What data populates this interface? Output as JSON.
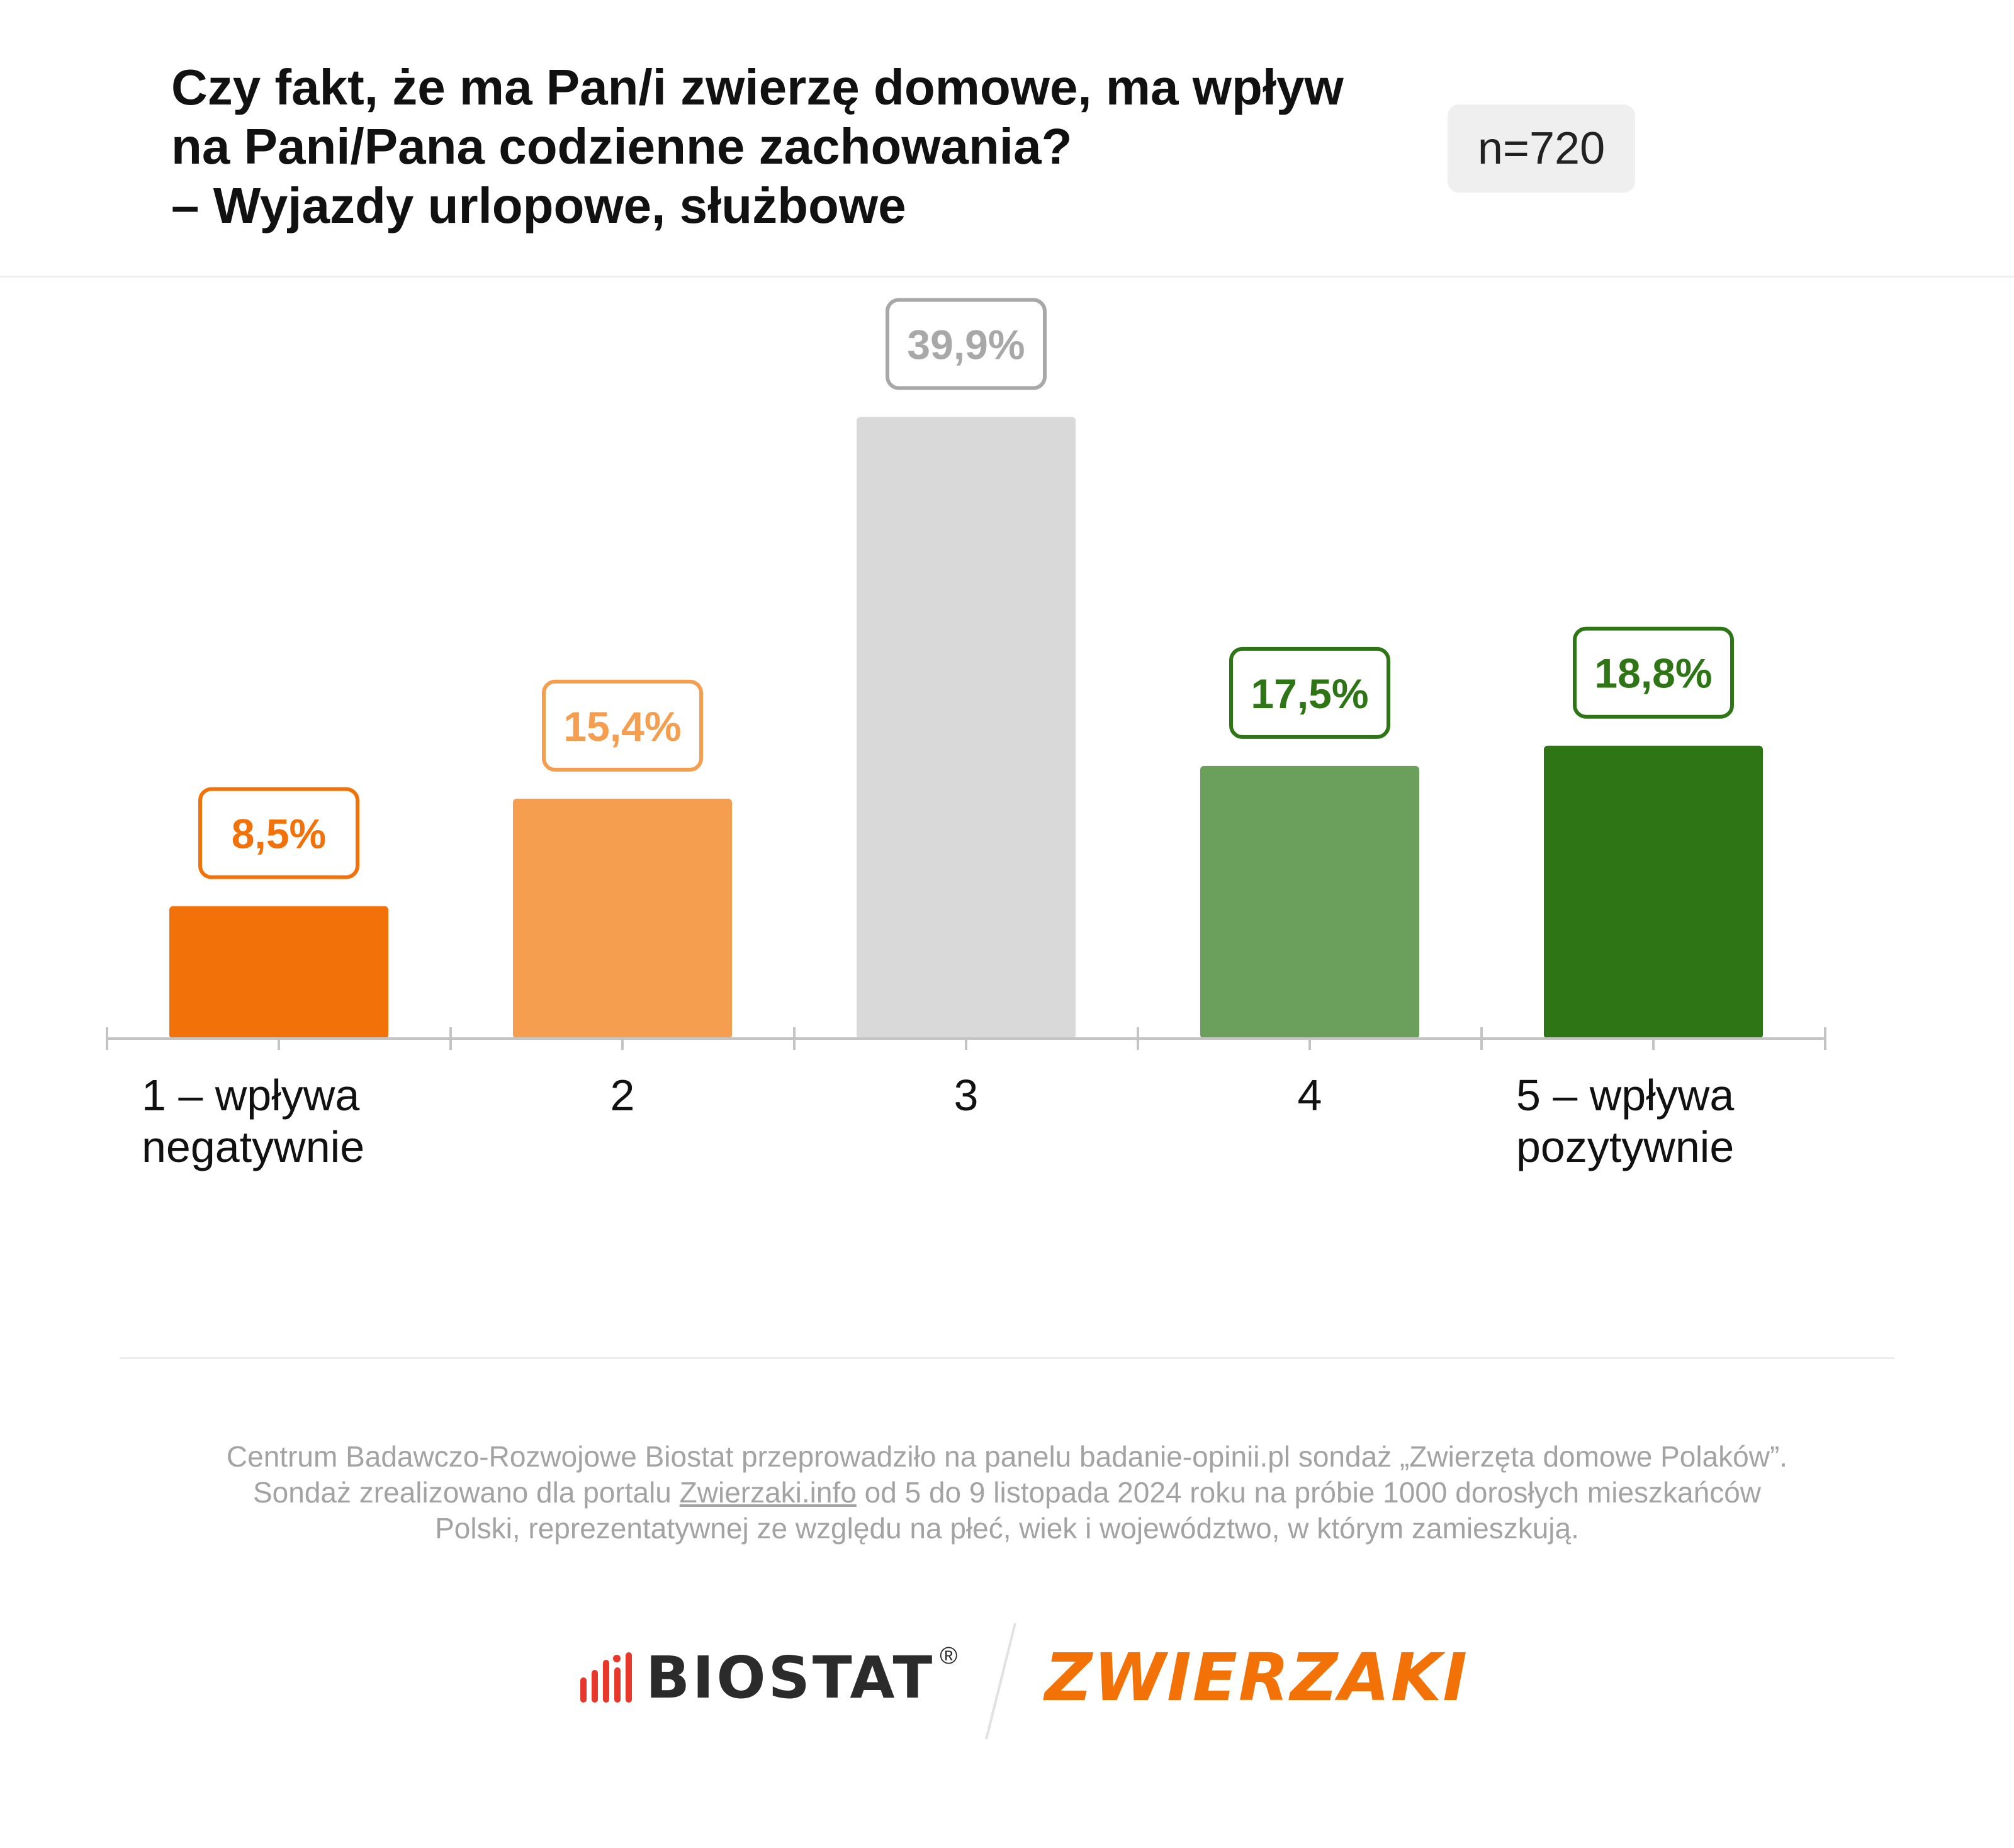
{
  "title_lines": [
    "Czy fakt, że ma Pan/i zwierzę domowe, ma wpływ",
    "na Pani/Pana codzienne zachowania?",
    "– Wyjazdy urlopowe, służbowe"
  ],
  "sample_size": "n=720",
  "chart_data": {
    "type": "bar",
    "title": "Czy fakt, że ma Pan/i zwierzę domowe, ma wpływ na Pani/Pana codzienne zachowania? – Wyjazdy urlopowe, służbowe",
    "categories": [
      [
        "1 – wpływa",
        "negatywnie"
      ],
      [
        "2"
      ],
      [
        "3"
      ],
      [
        "4"
      ],
      [
        "5 – wpływa",
        "pozytywnie"
      ]
    ],
    "values": [
      8.5,
      15.4,
      39.9,
      17.5,
      18.8
    ],
    "value_labels": [
      "8,5%",
      "15,4%",
      "39,9%",
      "17,5%",
      "18,8%"
    ],
    "bar_colors": [
      "#f27209",
      "#f59e50",
      "#d9d9d9",
      "#6b9f5c",
      "#2d7515"
    ],
    "label_colors": [
      "#f27209",
      "#f59e50",
      "#a8a8a8",
      "#2d7515",
      "#2d7515"
    ],
    "xlabel": "",
    "ylabel": "",
    "ylim": [
      0,
      40
    ],
    "grid": false,
    "legend": "none"
  },
  "footnote": {
    "line1": "Centrum Badawczo-Rozwojowe Biostat przeprowadziło na panelu badanie-opinii.pl sondaż „Zwierzęta domowe Polaków”.",
    "line2_before": "Sondaż zrealizowano dla portalu ",
    "line2_link": "Zwierzaki.info",
    "line2_after": " od 5 do 9 listopada 2024 roku na próbie 1000 dorosłych mieszkańców",
    "line3": "Polski, reprezentatywnej ze względu na płeć, wiek i województwo, w którym zamieszkują."
  },
  "logos": {
    "biostat": "BIOSTAT",
    "biostat_mark": "®",
    "zwierzaki": "ZWIERZAKI",
    "biostat_icon": "signal-bars-icon",
    "biostat_color": "#e8382b",
    "zwierzaki_color": "#f37208"
  }
}
